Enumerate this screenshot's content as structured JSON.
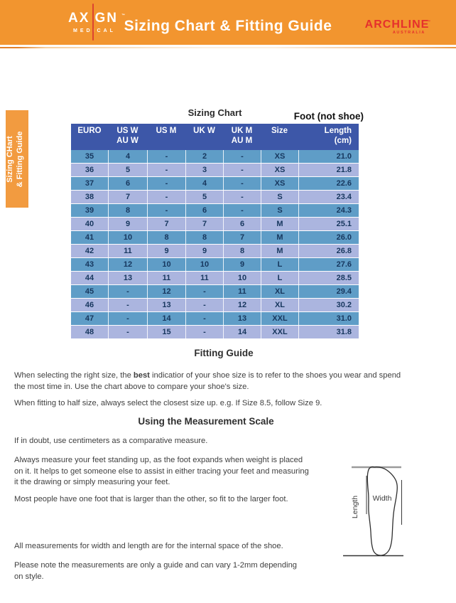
{
  "banner": {
    "axign_left": "AX",
    "axign_right": "GN",
    "axign_tm": "™",
    "axign_sub": "MEDICAL",
    "title": "Sizing Chart & Fitting Guide",
    "archline": "ARCHLINE",
    "archline_tm": "™",
    "archline_sub": "AUSTRALIA"
  },
  "side_tab": {
    "text": "Sizing CHart\n& Fitting Guide"
  },
  "sizing_chart": {
    "title": "Sizing Chart",
    "foot_label": "Foot (not shoe)",
    "columns": [
      {
        "line1": "EURO",
        "line2": ""
      },
      {
        "line1": "US W",
        "line2": "AU W"
      },
      {
        "line1": "US M",
        "line2": ""
      },
      {
        "line1": "UK W",
        "line2": ""
      },
      {
        "line1": "UK M",
        "line2": "AU M"
      },
      {
        "line1": "Size",
        "line2": ""
      },
      {
        "line1": "Length",
        "line2": "(cm)"
      }
    ],
    "rows": [
      [
        "35",
        "4",
        "-",
        "2",
        "-",
        "XS",
        "21.0"
      ],
      [
        "36",
        "5",
        "-",
        "3",
        "-",
        "XS",
        "21.8"
      ],
      [
        "37",
        "6",
        "-",
        "4",
        "-",
        "XS",
        "22.6"
      ],
      [
        "38",
        "7",
        "-",
        "5",
        "-",
        "S",
        "23.4"
      ],
      [
        "39",
        "8",
        "-",
        "6",
        "-",
        "S",
        "24.3"
      ],
      [
        "40",
        "9",
        "7",
        "7",
        "6",
        "M",
        "25.1"
      ],
      [
        "41",
        "10",
        "8",
        "8",
        "7",
        "M",
        "26.0"
      ],
      [
        "42",
        "11",
        "9",
        "9",
        "8",
        "M",
        "26.8"
      ],
      [
        "43",
        "12",
        "10",
        "10",
        "9",
        "L",
        "27.6"
      ],
      [
        "44",
        "13",
        "11",
        "11",
        "10",
        "L",
        "28.5"
      ],
      [
        "45",
        "-",
        "12",
        "-",
        "11",
        "XL",
        "29.4"
      ],
      [
        "46",
        "-",
        "13",
        "-",
        "12",
        "XL",
        "30.2"
      ],
      [
        "47",
        "-",
        "14",
        "-",
        "13",
        "XXL",
        "31.0"
      ],
      [
        "48",
        "-",
        "15",
        "-",
        "14",
        "XXL",
        "31.8"
      ]
    ]
  },
  "fitting_guide": {
    "title": "Fitting Guide",
    "p1_pre": "When selecting the right size, the ",
    "p1_bold": "best",
    "p1_post": " indicatior of your shoe size is to refer to the shoes you wear and spend\nthe most time in. Use the chart above to compare your shoe's size.",
    "p2": "When fitting to half size, always select the closest size up. e.g. If Size 8.5, follow Size 9."
  },
  "measurement": {
    "title": "Using the Measurement Scale",
    "p1": "If in doubt, use centimeters as a comparative measure.",
    "p2": "Always measure your feet standing up, as the foot expands when weight is placed\non it. It helps to get someone else to assist in either tracing your feet and measuring\nit the drawing or simply measuring your feet.",
    "p3": "Most people have one foot that is larger than the other, so fit to the larger foot.",
    "p4": "All measurements for width and length are for the internal space of the shoe.",
    "p5": "Please note the measurements are only a guide and can vary 1-2mm depending\non style."
  },
  "diagram": {
    "width_label": "Width",
    "length_label": "Length"
  },
  "colors": {
    "banner_orange": "#F2952F",
    "tab_orange": "#F29B40",
    "archline_red": "#E5302C",
    "axign_line_red": "#DC4330",
    "table_header_blue": "#3D57A8",
    "row_teal": "#5F9DC7",
    "row_periwinkle": "#ABB5DF",
    "table_text_navy": "#17375E"
  }
}
